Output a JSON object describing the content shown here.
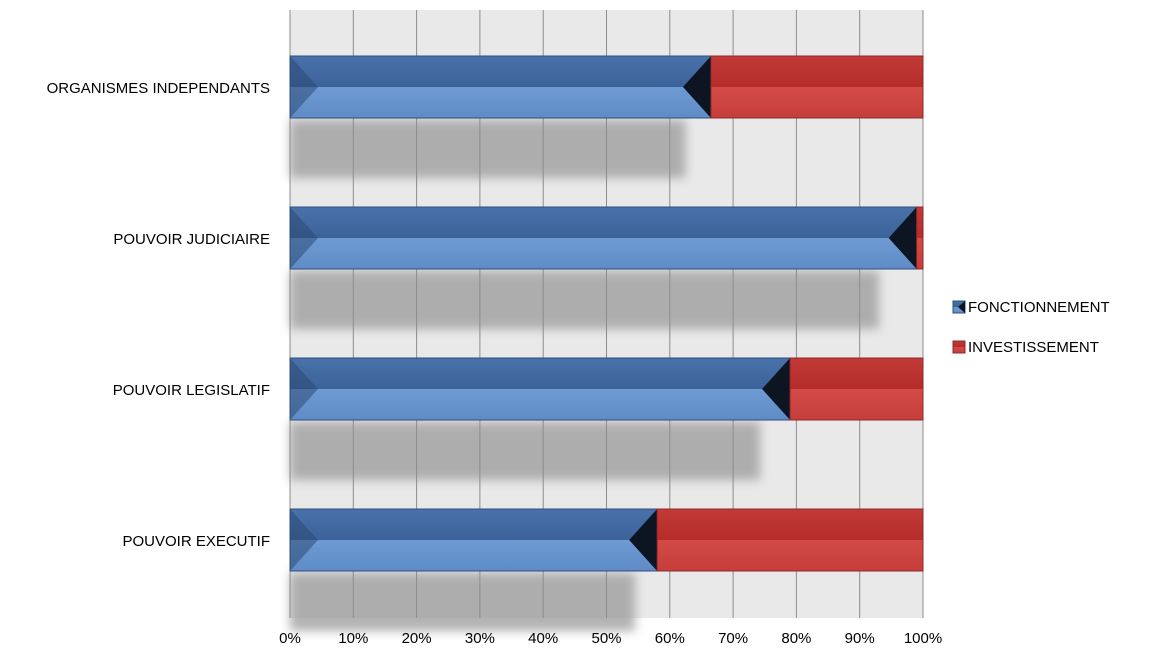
{
  "chart_data": {
    "type": "bar",
    "orientation": "horizontal",
    "stacked": "percent",
    "categories": [
      "ORGANISMES INDEPENDANTS",
      "POUVOIR JUDICIAIRE",
      "POUVOIR LEGISLATIF",
      "POUVOIR EXECUTIF"
    ],
    "series": [
      {
        "name": "FONCTIONNEMENT",
        "color": "#4f81bd",
        "values": [
          66.5,
          99,
          79,
          58
        ]
      },
      {
        "name": "INVESTISSEMENT",
        "color": "#c0504d",
        "values": [
          33.5,
          1,
          21,
          42
        ]
      }
    ],
    "x_ticks": [
      "0%",
      "10%",
      "20%",
      "30%",
      "40%",
      "50%",
      "60%",
      "70%",
      "80%",
      "90%",
      "100%"
    ],
    "xlim": [
      0,
      100
    ],
    "grid": true,
    "legend": {
      "position": "right"
    },
    "title": "",
    "xlabel": "",
    "ylabel": ""
  }
}
